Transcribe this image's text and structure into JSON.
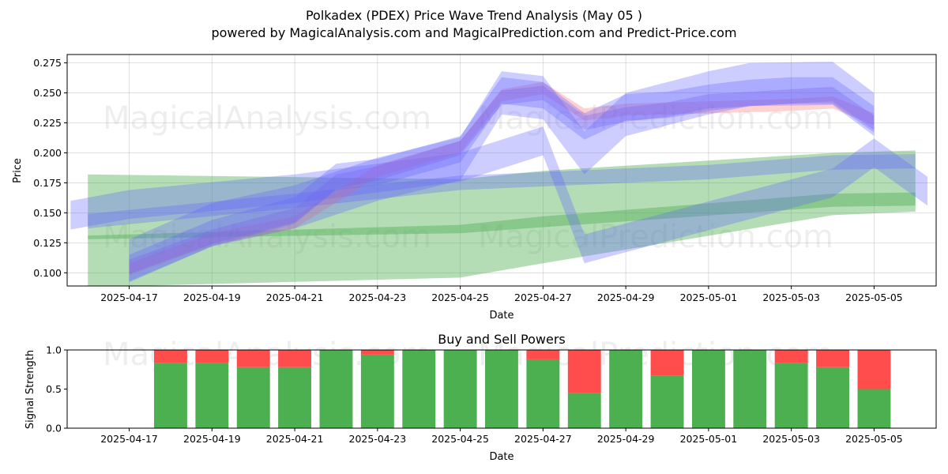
{
  "chart_data": [
    {
      "type": "area",
      "title": "Polkadex (PDEX) Price Wave Trend Analysis (May 05 )",
      "subtitle": "powered by MagicalAnalysis.com and MagicalPrediction.com and Predict-Price.com",
      "xlabel": "Date",
      "ylabel": "Price",
      "x_ticks": [
        "2025-04-17",
        "2025-04-19",
        "2025-04-21",
        "2025-04-23",
        "2025-04-25",
        "2025-04-27",
        "2025-04-29",
        "2025-05-01",
        "2025-05-03",
        "2025-05-05"
      ],
      "y_ticks": [
        "0.100",
        "0.125",
        "0.150",
        "0.175",
        "0.200",
        "0.225",
        "0.250",
        "0.275"
      ],
      "xlim": [
        "2025-04-15T12:00",
        "2025-05-06T12:00"
      ],
      "ylim": [
        0.089,
        0.282
      ],
      "grid": true,
      "colors": {
        "green": "#4caf50",
        "blue": "#6464ff",
        "red": "#ff7070",
        "purple": "#9060e0"
      },
      "series": [
        {
          "color": "green",
          "x": [
            "2025-04-16",
            "2025-04-25",
            "2025-04-27",
            "2025-05-04",
            "2025-05-06"
          ],
          "upper": [
            0.182,
            0.178,
            0.185,
            0.2,
            0.202
          ],
          "center": [
            0.131,
            0.14,
            0.146,
            0.189,
            0.196
          ],
          "lower": [
            0.088,
            0.096,
            0.108,
            0.148,
            0.151
          ]
        },
        {
          "color": "green",
          "x": [
            "2025-04-16",
            "2025-04-25",
            "2025-04-27",
            "2025-05-04",
            "2025-05-06"
          ],
          "upper": [
            0.131,
            0.14,
            0.147,
            0.166,
            0.167
          ],
          "center": [
            0.13,
            0.136,
            0.143,
            0.16,
            0.162
          ],
          "lower": [
            0.128,
            0.133,
            0.138,
            0.155,
            0.156
          ]
        },
        {
          "color": "blue",
          "x": [
            "2025-04-15T14:00",
            "2025-04-17",
            "2025-04-21",
            "2025-04-25",
            "2025-04-27",
            "2025-04-28",
            "2025-05-04",
            "2025-05-05",
            "2025-05-06T07:00"
          ],
          "center": [
            0.148,
            0.157,
            0.17,
            0.188,
            0.21,
            0.12,
            0.175,
            0.2,
            0.168
          ],
          "width": 0.024
        },
        {
          "color": "blue",
          "x": [
            "2025-04-16",
            "2025-04-21",
            "2025-04-25",
            "2025-04-27",
            "2025-05-01",
            "2025-05-04",
            "2025-05-06"
          ],
          "center": [
            0.143,
            0.16,
            0.175,
            0.178,
            0.184,
            0.192,
            0.193
          ],
          "width": 0.012
        },
        {
          "color": "red",
          "x": [
            "2025-04-17",
            "2025-04-19",
            "2025-04-21",
            "2025-04-23",
            "2025-04-25",
            "2025-04-26",
            "2025-04-27",
            "2025-04-28",
            "2025-04-29",
            "2025-05-01",
            "2025-05-03",
            "2025-05-04",
            "2025-05-05"
          ],
          "center": [
            0.103,
            0.128,
            0.142,
            0.185,
            0.205,
            0.248,
            0.254,
            0.232,
            0.236,
            0.238,
            0.24,
            0.242,
            0.228
          ],
          "width": 0.01
        },
        {
          "color": "purple",
          "x": [
            "2025-04-17",
            "2025-04-19",
            "2025-04-21",
            "2025-04-22",
            "2025-04-23",
            "2025-04-25",
            "2025-04-26",
            "2025-04-27",
            "2025-04-28",
            "2025-04-29",
            "2025-04-30",
            "2025-05-01",
            "2025-05-02",
            "2025-05-03",
            "2025-05-04",
            "2025-05-05"
          ],
          "center": [
            0.105,
            0.13,
            0.148,
            0.176,
            0.183,
            0.204,
            0.246,
            0.25,
            0.225,
            0.232,
            0.236,
            0.243,
            0.245,
            0.247,
            0.249,
            0.225
          ],
          "width": 0.012
        },
        {
          "color": "blue",
          "x": [
            "2025-04-17",
            "2025-04-19",
            "2025-04-21",
            "2025-04-22",
            "2025-04-23",
            "2025-04-25",
            "2025-04-26",
            "2025-04-27",
            "2025-04-28",
            "2025-04-29",
            "2025-04-30",
            "2025-05-01",
            "2025-05-02",
            "2025-05-03",
            "2025-05-04",
            "2025-05-05"
          ],
          "center": [
            0.104,
            0.133,
            0.152,
            0.18,
            0.184,
            0.203,
            0.252,
            0.248,
            0.222,
            0.238,
            0.24,
            0.246,
            0.25,
            0.252,
            0.252,
            0.228
          ],
          "width": 0.022
        },
        {
          "color": "blue",
          "x": [
            "2025-04-17",
            "2025-04-19",
            "2025-04-21",
            "2025-04-23",
            "2025-04-25",
            "2025-04-26",
            "2025-04-27",
            "2025-04-28",
            "2025-04-29",
            "2025-05-01",
            "2025-05-02",
            "2025-05-04",
            "2025-05-05"
          ],
          "center": [
            0.11,
            0.14,
            0.155,
            0.178,
            0.195,
            0.25,
            0.246,
            0.2,
            0.232,
            0.25,
            0.257,
            0.258,
            0.232
          ],
          "width": 0.036
        }
      ]
    },
    {
      "type": "bar",
      "title": "Buy and Sell Powers",
      "xlabel": "Date",
      "ylabel": "Signal Strength",
      "x_ticks": [
        "2025-04-17",
        "2025-04-19",
        "2025-04-21",
        "2025-04-23",
        "2025-04-25",
        "2025-04-27",
        "2025-04-29",
        "2025-05-01",
        "2025-05-03",
        "2025-05-05"
      ],
      "y_ticks": [
        "0.0",
        "0.5",
        "1.0"
      ],
      "ylim": [
        0,
        1
      ],
      "colors": {
        "buy": "#4caf50",
        "sell": "#ff4d4d"
      },
      "categories": [
        "2025-04-18",
        "2025-04-19",
        "2025-04-20",
        "2025-04-21",
        "2025-04-22",
        "2025-04-23",
        "2025-04-24",
        "2025-04-25",
        "2025-04-26",
        "2025-04-27",
        "2025-04-28",
        "2025-04-29",
        "2025-04-30",
        "2025-05-01",
        "2025-05-02",
        "2025-05-03",
        "2025-05-04",
        "2025-05-05"
      ],
      "series": [
        {
          "name": "Buy",
          "values": [
            0.83,
            0.83,
            0.78,
            0.78,
            1.0,
            0.94,
            1.0,
            1.0,
            1.0,
            0.88,
            0.45,
            1.0,
            0.67,
            1.0,
            1.0,
            0.83,
            0.78,
            0.5
          ]
        },
        {
          "name": "Sell",
          "values": [
            0.17,
            0.17,
            0.22,
            0.22,
            0.0,
            0.06,
            0.0,
            0.0,
            0.0,
            0.12,
            0.55,
            0.0,
            0.33,
            0.0,
            0.0,
            0.17,
            0.22,
            0.5
          ]
        }
      ]
    }
  ],
  "watermarks": [
    "MagicalAnalysis.com",
    "MagicalPrediction.com"
  ]
}
